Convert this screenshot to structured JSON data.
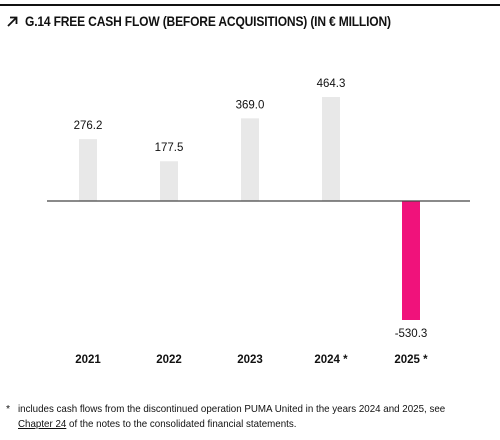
{
  "title": "G.14 FREE CASH FLOW (BEFORE ACQUISITIONS) (IN € MILLION)",
  "title_icon": "arrow-up-right-icon",
  "colors": {
    "positive_bar": "#e8e8e8",
    "negative_bar": "#f0127b",
    "axis": "#444444",
    "text": "#111111"
  },
  "chart_data": {
    "type": "bar",
    "categories": [
      "2021",
      "2022",
      "2023",
      "2024 *",
      "2025 *"
    ],
    "values": [
      276.2,
      177.5,
      369.0,
      464.3,
      -530.3
    ],
    "value_labels": [
      "276.2",
      "177.5",
      "369.0",
      "464.3",
      "-530.3"
    ],
    "title": "G.14 FREE CASH FLOW (BEFORE ACQUISITIONS) (IN € MILLION)",
    "xlabel": "",
    "ylabel": "",
    "ylim": [
      -530.3,
      464.3
    ],
    "grid": false,
    "legend": "none"
  },
  "footnote": {
    "marker": "*",
    "text_before": "includes cash flows from the discontinued operation PUMA United in the years 2024 and 2025, see ",
    "link_text": "Chapter 24",
    "text_after": " of the notes to the consolidated financial statements."
  }
}
